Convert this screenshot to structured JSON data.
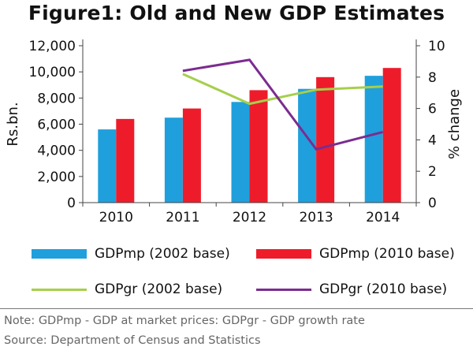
{
  "colors": {
    "gdpmp_2002": "#1fa0dc",
    "gdpmp_2010": "#ee1c2a",
    "gdpgr_2002": "#a5cf4c",
    "gdpgr_2010": "#7b2c90",
    "axis": "#444444"
  },
  "chart_data": {
    "type": "bar",
    "title": "Figure1: Old and New GDP Estimates",
    "categories": [
      "2010",
      "2011",
      "2012",
      "2013",
      "2014"
    ],
    "ylabel": "Rs.bn.",
    "ylim": [
      0,
      12000
    ],
    "yticks": [
      "0",
      "2,000",
      "4,000",
      "6,000",
      "8,000",
      "10,000",
      "12,000"
    ],
    "y2label": "% change",
    "y2lim": [
      0,
      10
    ],
    "y2ticks": [
      "0",
      "2",
      "4",
      "6",
      "8",
      "10"
    ],
    "grid": false,
    "legend_position": "bottom",
    "series": [
      {
        "name": "GDPmp (2002 base)",
        "type": "bar",
        "axis": "left",
        "values": [
          5600,
          6500,
          7700,
          8700,
          9700
        ]
      },
      {
        "name": "GDPmp (2010 base)",
        "type": "bar",
        "axis": "left",
        "values": [
          6400,
          7200,
          8600,
          9600,
          10300
        ]
      },
      {
        "name": "GDPgr (2002 base)",
        "type": "line",
        "axis": "right",
        "x": [
          "2011",
          "2012",
          "2013",
          "2014"
        ],
        "values": [
          8.2,
          6.3,
          7.2,
          7.4
        ]
      },
      {
        "name": "GDPgr (2010 base)",
        "type": "line",
        "axis": "right",
        "x": [
          "2011",
          "2012",
          "2013",
          "2014"
        ],
        "values": [
          8.4,
          9.1,
          3.4,
          4.5
        ]
      }
    ]
  },
  "notes": {
    "note": "Note: GDPmp - GDP at market prices: GDPgr - GDP growth rate",
    "source": "Source: Department of Census and Statistics"
  }
}
